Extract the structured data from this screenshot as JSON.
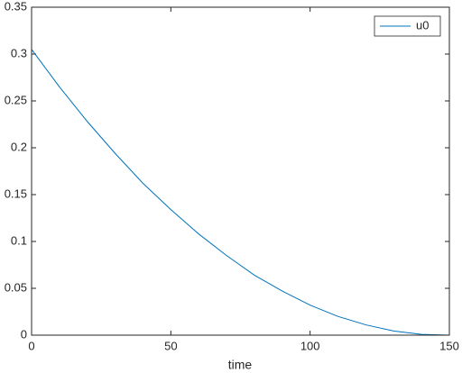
{
  "chart_data": {
    "type": "line",
    "xlabel": "time",
    "x": [
      0,
      10,
      20,
      30,
      40,
      50,
      60,
      70,
      80,
      90,
      100,
      110,
      120,
      130,
      140,
      150
    ],
    "series": [
      {
        "name": "u0",
        "color": "#0072bd",
        "values": [
          0.305,
          0.265,
          0.228,
          0.194,
          0.162,
          0.134,
          0.108,
          0.085,
          0.064,
          0.047,
          0.032,
          0.02,
          0.011,
          0.0045,
          0.0009,
          0
        ]
      }
    ],
    "xlim": [
      0,
      150
    ],
    "xticks": [
      0,
      50,
      100,
      150
    ],
    "ylim": [
      0,
      0.35
    ],
    "yticks": [
      0,
      0.05,
      0.1,
      0.15,
      0.2,
      0.25,
      0.3,
      0.35
    ],
    "legend": "northeast",
    "grid": false
  }
}
